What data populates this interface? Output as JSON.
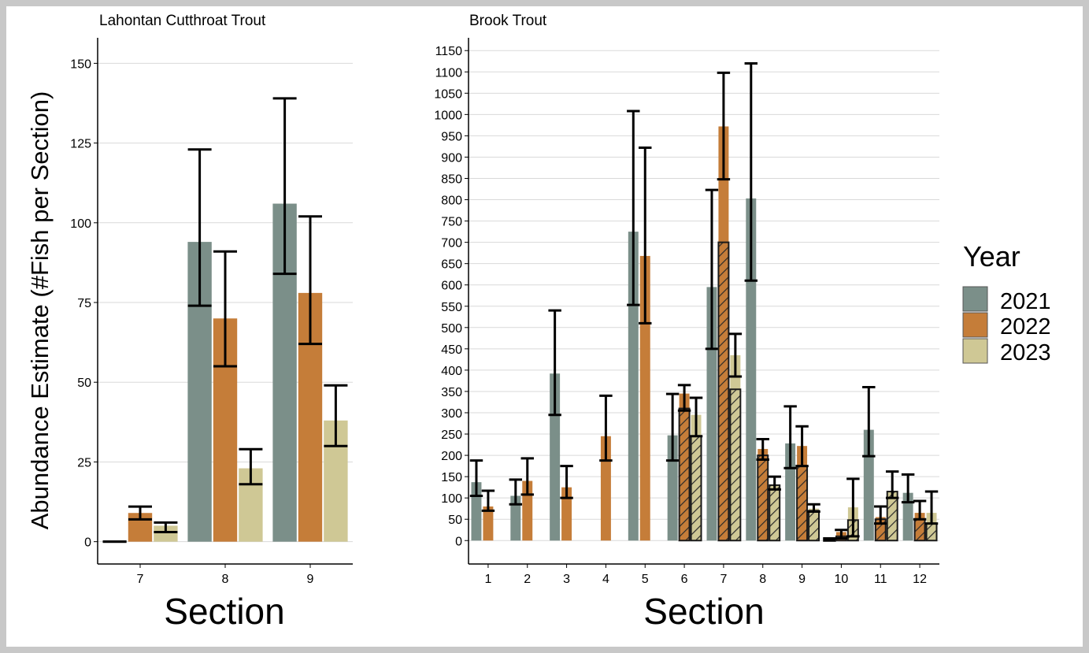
{
  "chart_data": [
    {
      "type": "bar",
      "title": "Lahontan Cutthroat Trout",
      "xlabel": "Section",
      "ylabel": "Abundance Estimate (#Fish per Section)",
      "categories": [
        "7",
        "8",
        "9"
      ],
      "ylim": [
        -7,
        158
      ],
      "yticks": [
        0,
        25,
        50,
        75,
        100,
        125,
        150
      ],
      "grid": "horizontal",
      "series": [
        {
          "name": "2021",
          "values": [
            0,
            94,
            106
          ],
          "lower": [
            0,
            74,
            84
          ],
          "upper": [
            0,
            123,
            139
          ]
        },
        {
          "name": "2022",
          "values": [
            9,
            70,
            78
          ],
          "lower": [
            7,
            55,
            62
          ],
          "upper": [
            11,
            91,
            102
          ]
        },
        {
          "name": "2023",
          "values": [
            5,
            23,
            38
          ],
          "lower": [
            3,
            18,
            30
          ],
          "upper": [
            6,
            29,
            49
          ]
        }
      ]
    },
    {
      "type": "bar",
      "title": "Brook Trout",
      "xlabel": "Section",
      "ylabel": "",
      "categories": [
        "1",
        "2",
        "3",
        "4",
        "5",
        "6",
        "7",
        "8",
        "9",
        "10",
        "11",
        "12"
      ],
      "ylim": [
        -55,
        1180
      ],
      "yticks": [
        0,
        50,
        100,
        150,
        200,
        250,
        300,
        350,
        400,
        450,
        500,
        550,
        600,
        650,
        700,
        750,
        800,
        850,
        900,
        950,
        1000,
        1050,
        1100,
        1150
      ],
      "grid": "horizontal",
      "series": [
        {
          "name": "2021",
          "values": [
            137,
            105,
            392,
            null,
            725,
            247,
            595,
            803,
            228,
            3,
            260,
            112
          ],
          "lower": [
            105,
            85,
            295,
            null,
            553,
            188,
            450,
            610,
            170,
            0,
            198,
            90
          ],
          "upper": [
            188,
            143,
            540,
            null,
            1008,
            344,
            823,
            1120,
            315,
            5,
            360,
            155
          ]
        },
        {
          "name": "2022",
          "values": [
            80,
            140,
            125,
            245,
            668,
            345,
            972,
            215,
            222,
            20,
            55,
            65
          ],
          "lower": [
            70,
            108,
            100,
            188,
            510,
            305,
            848,
            190,
            175,
            5,
            40,
            50
          ],
          "upper": [
            117,
            193,
            175,
            340,
            922,
            365,
            1098,
            238,
            268,
            25,
            80,
            93
          ],
          "overlay_values": [
            null,
            null,
            null,
            null,
            null,
            310,
            700,
            200,
            175,
            10,
            50,
            50
          ]
        },
        {
          "name": "2023",
          "values": [
            null,
            null,
            null,
            null,
            null,
            295,
            435,
            130,
            75,
            78,
            115,
            65
          ],
          "lower": [
            null,
            null,
            null,
            null,
            null,
            245,
            385,
            120,
            68,
            10,
            100,
            40
          ],
          "upper": [
            null,
            null,
            null,
            null,
            null,
            335,
            485,
            150,
            85,
            145,
            162,
            115
          ],
          "overlay_values": [
            null,
            null,
            null,
            null,
            null,
            245,
            355,
            130,
            70,
            48,
            115,
            40
          ]
        }
      ]
    }
  ],
  "legend": {
    "title": "Year",
    "items": [
      {
        "label": "2021",
        "color": "#7b8f89"
      },
      {
        "label": "2022",
        "color": "#c57d39"
      },
      {
        "label": "2023",
        "color": "#cfc895"
      }
    ]
  }
}
